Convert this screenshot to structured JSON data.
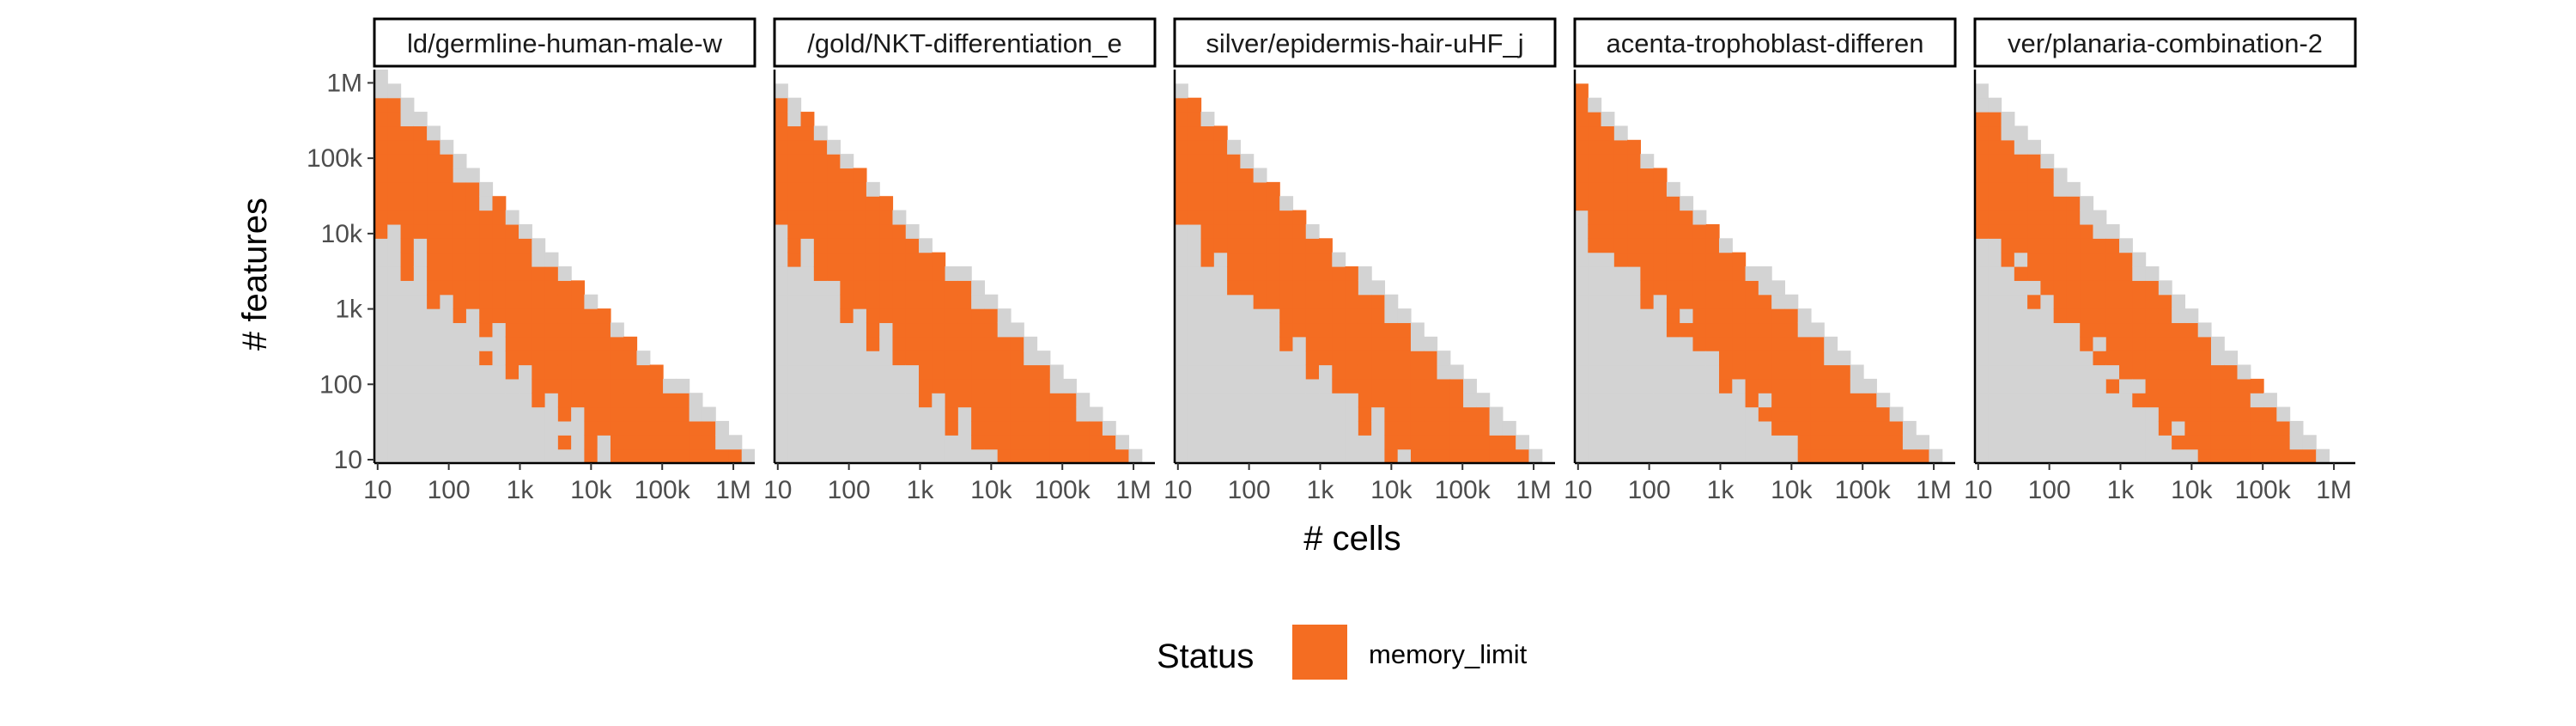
{
  "chart_data": {
    "type": "heatmap",
    "xlabel": "# cells",
    "ylabel": "# features",
    "x_scale": "log10",
    "y_scale": "log10",
    "x_ticks": [
      {
        "value": 10,
        "label": "10"
      },
      {
        "value": 100,
        "label": "100"
      },
      {
        "value": 1000,
        "label": "1k"
      },
      {
        "value": 10000,
        "label": "10k"
      },
      {
        "value": 100000,
        "label": "100k"
      },
      {
        "value": 1000000,
        "label": "1M"
      }
    ],
    "y_ticks": [
      {
        "value": 10,
        "label": "10"
      },
      {
        "value": 100,
        "label": "100"
      },
      {
        "value": 1000,
        "label": "1k"
      },
      {
        "value": 10000,
        "label": "10k"
      },
      {
        "value": 100000,
        "label": "100k"
      },
      {
        "value": 1000000,
        "label": "1M"
      }
    ],
    "xlim": [
      9,
      2000000
    ],
    "ylim": [
      9,
      1500000
    ],
    "legend": {
      "title": "Status",
      "position": "bottom",
      "entries": [
        {
          "label": "memory_limit",
          "color": "#f46d22"
        }
      ]
    },
    "colors": {
      "memory_limit": "#f46d22",
      "background_tile": "#d3d3d3"
    },
    "panels": [
      {
        "title": "ld/germline-human-male-w",
        "start_log_features": 6.15,
        "end_log_cells": 6.3,
        "band_lo": 1.5,
        "band_hi": 2.5,
        "pattern": [
          0.6,
          0.3,
          0.8,
          0.2,
          0.9,
          0.45
        ]
      },
      {
        "title": "/gold/NKT-differentiation_e",
        "start_log_features": 6.05,
        "end_log_cells": 6.15,
        "band_lo": 1.5,
        "band_hi": 2.4,
        "pattern": [
          0.5,
          0.9,
          0.3,
          0.7,
          0.4,
          0.85
        ]
      },
      {
        "title": "silver/epidermis-hair-uHF_j",
        "start_log_features": 6.1,
        "end_log_cells": 6.1,
        "band_lo": 1.5,
        "band_hi": 2.2,
        "pattern": [
          0.8,
          0.4,
          0.6,
          0.25,
          0.95,
          0.5
        ]
      },
      {
        "title": "acenta-trophoblast-differen",
        "start_log_features": 6.05,
        "end_log_cells": 6.15,
        "band_lo": 1.5,
        "band_hi": 2.2,
        "pattern": [
          0.35,
          0.75,
          0.55,
          0.9,
          0.2,
          0.65
        ]
      },
      {
        "title": "ver/planaria-combination-2",
        "start_log_features": 5.95,
        "end_log_cells": 6.0,
        "band_lo": 1.5,
        "band_hi": 2.2,
        "pattern": [
          0.7,
          0.2,
          0.9,
          0.5,
          0.3,
          0.8
        ]
      }
    ]
  }
}
